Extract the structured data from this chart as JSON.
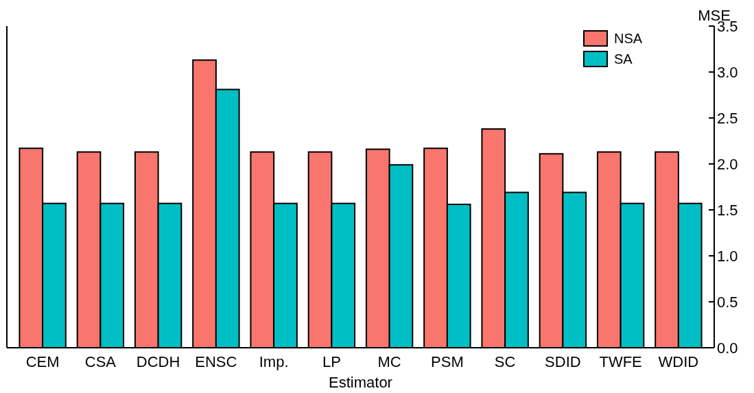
{
  "chart_data": {
    "type": "bar",
    "xlabel": "Estimator",
    "ylabel": "MSE",
    "categories": [
      "CEM",
      "CSA",
      "DCDH",
      "ENSC",
      "Imp.",
      "LP",
      "MC",
      "PSM",
      "SC",
      "SDID",
      "TWFE",
      "WDID"
    ],
    "series": [
      {
        "name": "NSA",
        "color": "#f8766d",
        "values": [
          2.17,
          2.13,
          2.13,
          3.13,
          2.13,
          2.13,
          2.16,
          2.17,
          2.38,
          2.11,
          2.13,
          2.13
        ]
      },
      {
        "name": "SA",
        "color": "#00bfc4",
        "values": [
          1.57,
          1.57,
          1.57,
          2.81,
          1.57,
          1.57,
          1.99,
          1.56,
          1.69,
          1.69,
          1.57,
          1.57
        ]
      }
    ],
    "ylim": [
      0,
      3.5
    ],
    "yticks": [
      {
        "value": 0,
        "label": "0.0"
      },
      {
        "value": 0.5,
        "label": "0.5"
      },
      {
        "value": 1,
        "label": "1.0"
      },
      {
        "value": 1.5,
        "label": "1.5"
      },
      {
        "value": 2,
        "label": "2.0"
      },
      {
        "value": 2.5,
        "label": "2.5"
      },
      {
        "value": 3,
        "label": "3.0"
      },
      {
        "value": 3.5,
        "label": "3.5"
      }
    ],
    "grid": false,
    "legend": "top right"
  }
}
